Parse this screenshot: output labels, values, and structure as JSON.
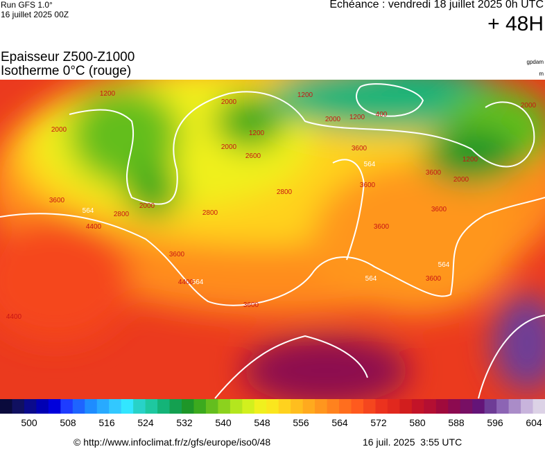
{
  "header": {
    "run": "Run GFS 1.0°",
    "run_date": "16 juillet 2025 00Z",
    "echeance": "Echéance : vendredi 18 juillet 2025 0h UTC",
    "lead": "+ 48H"
  },
  "title": {
    "line1": "Epaisseur Z500-Z1000",
    "line2": "Isotherme 0°C (rouge)",
    "unit1": "gpdam",
    "unit2": "m"
  },
  "map": {
    "contour_labels": [
      "1200",
      "2000",
      "2000",
      "2000",
      "1200",
      "1200",
      "400",
      "2000",
      "1200",
      "2000",
      "3600",
      "564",
      "3600",
      "2800",
      "2800",
      "3600",
      "564",
      "4400",
      "2800",
      "2000",
      "3600",
      "564",
      "4400",
      "3600",
      "4400",
      "3600",
      "564",
      "3600",
      "3600",
      "564",
      "2600",
      "1200",
      "2000",
      "3600"
    ]
  },
  "colorbar": {
    "labels": [
      500,
      508,
      516,
      524,
      532,
      540,
      548,
      556,
      564,
      572,
      580,
      588,
      596,
      604
    ],
    "colors": [
      "#0a0a3c",
      "#101060",
      "#0a0a8c",
      "#0000b4",
      "#0000dc",
      "#1e3cff",
      "#1e64ff",
      "#1e8cff",
      "#28aaff",
      "#32c8ff",
      "#32e6ff",
      "#28d2c8",
      "#1ec8a0",
      "#14b478",
      "#14a050",
      "#1e9628",
      "#3caa1e",
      "#64be1e",
      "#8cd21e",
      "#b4e61e",
      "#d2f01e",
      "#f0f01e",
      "#fae61e",
      "#ffd21e",
      "#ffbe1e",
      "#ffaa1e",
      "#ff961e",
      "#ff821e",
      "#ff6e1e",
      "#ff5a1e",
      "#f5461e",
      "#eb321e",
      "#e1281e",
      "#d21e1e",
      "#c31428",
      "#b40f32",
      "#a00a3c",
      "#8c0a50",
      "#780f64",
      "#641478",
      "#6e3c96",
      "#8c64b4",
      "#aa8cc8",
      "#c8b4dc",
      "#dcd2e6"
    ]
  },
  "footer": {
    "url": "© http://www.infoclimat.fr/z/gfs/europe/iso0/48",
    "date": "16 juil. 2025  3:55 UTC"
  }
}
